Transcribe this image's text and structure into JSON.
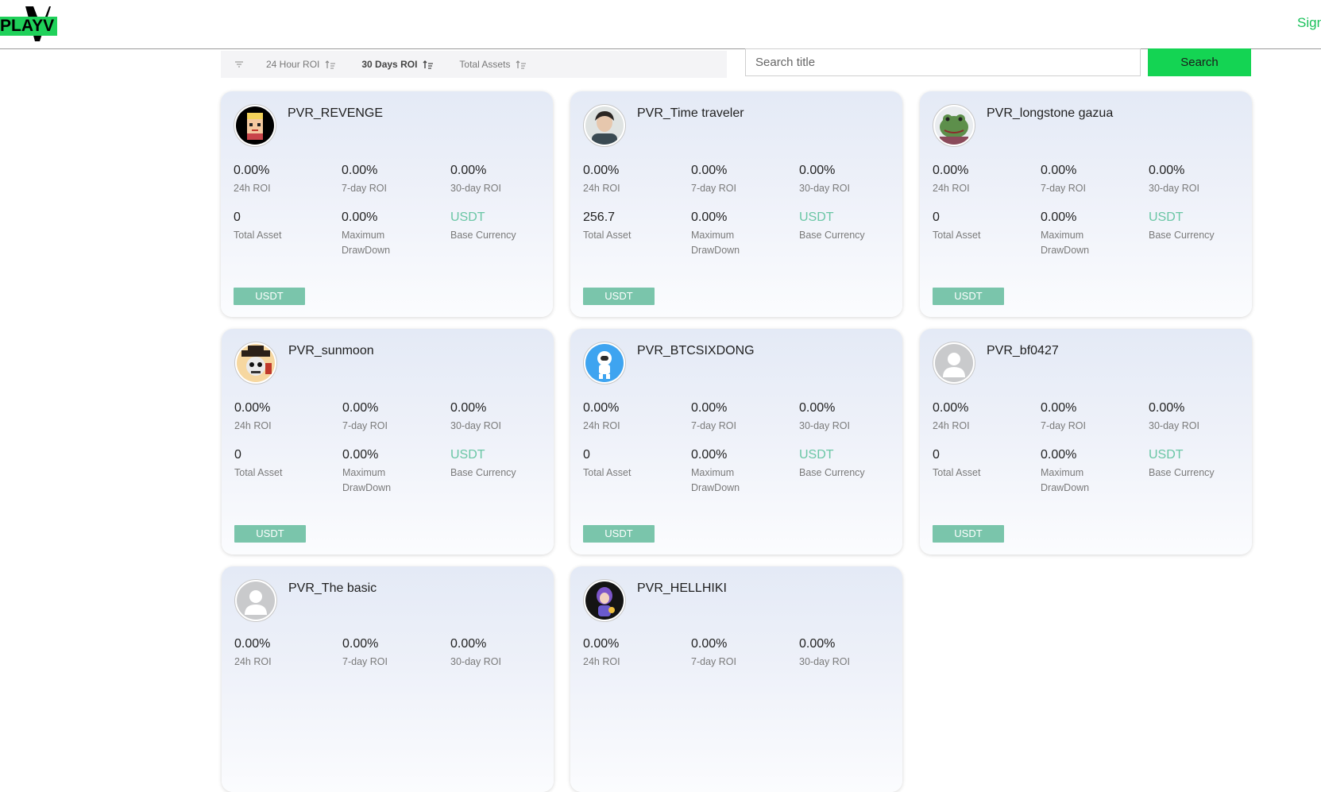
{
  "header": {
    "logo_text": "PLAYV",
    "signin_label": "Sign"
  },
  "filter": {
    "sort_items": [
      {
        "label": "24 Hour ROI",
        "active": false
      },
      {
        "label": "30 Days ROI",
        "active": true
      },
      {
        "label": "Total Assets",
        "active": false
      }
    ]
  },
  "search": {
    "placeholder": "Search title",
    "button_label": "Search"
  },
  "labels": {
    "roi_24h": "24h ROI",
    "roi_7d": "7-day ROI",
    "roi_30d": "30-day ROI",
    "total_asset": "Total Asset",
    "max_drawdown_line1": "Maximum",
    "max_drawdown_line2": "DrawDown",
    "base_currency": "Base Currency"
  },
  "cards": [
    {
      "name": "PVR_REVENGE",
      "roi_24h": "0.00%",
      "roi_7d": "0.00%",
      "roi_30d": "0.00%",
      "total_asset": "0",
      "max_drawdown": "0.00%",
      "base_currency": "USDT",
      "badge": "USDT",
      "avatar_icon": "pixel-face-avatar"
    },
    {
      "name": "PVR_Time traveler",
      "roi_24h": "0.00%",
      "roi_7d": "0.00%",
      "roi_30d": "0.00%",
      "total_asset": "256.7",
      "max_drawdown": "0.00%",
      "base_currency": "USDT",
      "badge": "USDT",
      "avatar_icon": "person-photo-avatar"
    },
    {
      "name": "PVR_longstone gazua",
      "roi_24h": "0.00%",
      "roi_7d": "0.00%",
      "roi_30d": "0.00%",
      "total_asset": "0",
      "max_drawdown": "0.00%",
      "base_currency": "USDT",
      "badge": "USDT",
      "avatar_icon": "frog-avatar"
    },
    {
      "name": "PVR_sunmoon",
      "roi_24h": "0.00%",
      "roi_7d": "0.00%",
      "roi_30d": "0.00%",
      "total_asset": "0",
      "max_drawdown": "0.00%",
      "base_currency": "USDT",
      "badge": "USDT",
      "avatar_icon": "skull-hat-avatar"
    },
    {
      "name": "PVR_BTCSIXDONG",
      "roi_24h": "0.00%",
      "roi_7d": "0.00%",
      "roi_30d": "0.00%",
      "total_asset": "0",
      "max_drawdown": "0.00%",
      "base_currency": "USDT",
      "badge": "USDT",
      "avatar_icon": "astronaut-avatar"
    },
    {
      "name": "PVR_bf0427",
      "roi_24h": "0.00%",
      "roi_7d": "0.00%",
      "roi_30d": "0.00%",
      "total_asset": "0",
      "max_drawdown": "0.00%",
      "base_currency": "USDT",
      "badge": "USDT",
      "avatar_icon": "default-user-avatar"
    },
    {
      "name": "PVR_The basic",
      "roi_24h": "0.00%",
      "roi_7d": "0.00%",
      "roi_30d": "0.00%",
      "avatar_icon": "default-user-avatar"
    },
    {
      "name": "PVR_HELLHIKI",
      "roi_24h": "0.00%",
      "roi_7d": "0.00%",
      "roi_30d": "0.00%",
      "avatar_icon": "anime-character-avatar"
    }
  ],
  "colors": {
    "brand_green": "#14d453",
    "badge_green": "#7ac5ab",
    "usdt_text": "#6ac6a5"
  }
}
